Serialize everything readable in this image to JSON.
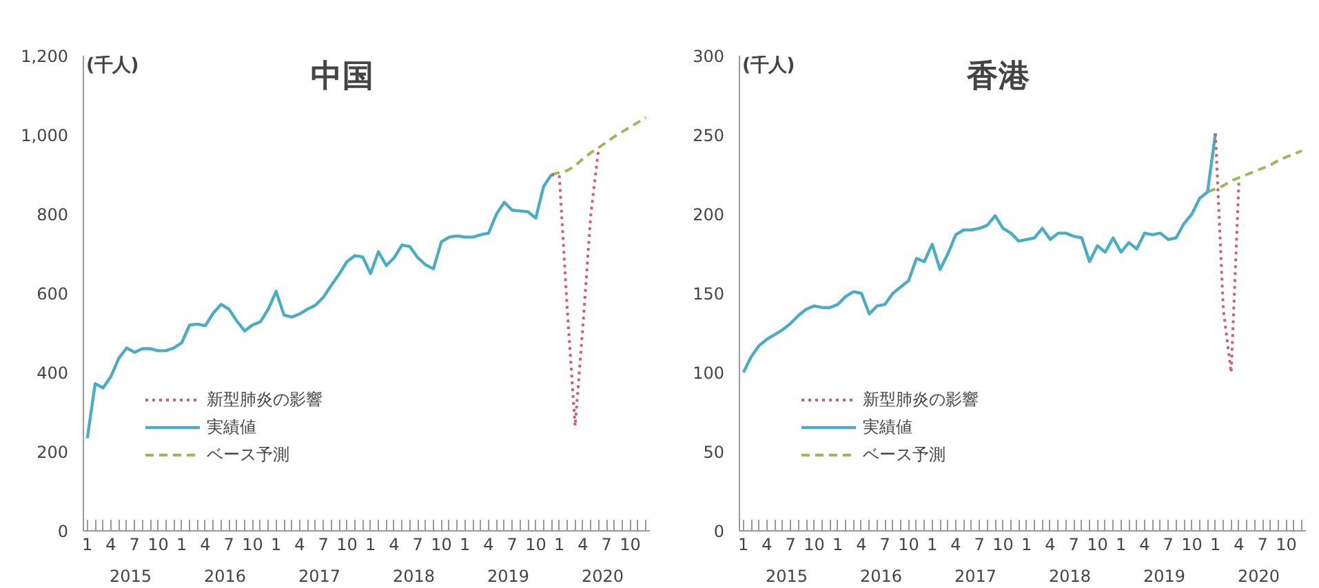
{
  "chart_data": [
    {
      "type": "line",
      "title": "中国",
      "ylabel": "(千人)",
      "categories": [
        "1",
        null,
        null,
        "4",
        null,
        null,
        "7",
        null,
        null,
        "10",
        null,
        null,
        "1",
        null,
        null,
        "4",
        null,
        null,
        "7",
        null,
        null,
        "10",
        null,
        null,
        "1",
        null,
        null,
        "4",
        null,
        null,
        "7",
        null,
        null,
        "10",
        null,
        null,
        "1",
        null,
        null,
        "4",
        null,
        null,
        "7",
        null,
        null,
        "10",
        null,
        null,
        "1",
        null,
        null,
        "4",
        null,
        null,
        "7",
        null,
        null,
        "10",
        null,
        null,
        "1",
        null,
        null,
        "4",
        null,
        null,
        "7",
        null,
        null,
        "10",
        null,
        null
      ],
      "annotations": [
        "2015",
        "2016",
        "2017",
        "2018",
        "2019",
        "2020"
      ],
      "ylim": [
        0,
        1200
      ],
      "yticks": [
        0,
        200,
        400,
        600,
        800,
        {
          "value": 1000,
          "label": "1,000"
        },
        {
          "value": 1200,
          "label": "1,200"
        }
      ],
      "grid": false,
      "legend": "bottom left",
      "series": [
        {
          "name": "新型肺炎の影響",
          "color": "#d0606e",
          "line_style": "dotted",
          "values": [
            null,
            null,
            null,
            null,
            null,
            null,
            null,
            null,
            null,
            null,
            null,
            null,
            null,
            null,
            null,
            null,
            null,
            null,
            null,
            null,
            null,
            null,
            null,
            null,
            null,
            null,
            null,
            null,
            null,
            null,
            null,
            null,
            null,
            null,
            null,
            null,
            null,
            null,
            null,
            null,
            null,
            null,
            null,
            null,
            null,
            null,
            null,
            null,
            null,
            null,
            null,
            null,
            null,
            null,
            null,
            null,
            null,
            null,
            null,
            900,
            895,
            560,
            265,
            520,
            800,
            968,
            null,
            null,
            null,
            null,
            null,
            null
          ]
        },
        {
          "name": "実績値",
          "color": "#4bacc6",
          "line_style": "solid",
          "values": [
            234,
            372,
            361,
            390,
            436,
            462,
            451,
            460,
            460,
            455,
            455,
            462,
            475,
            520,
            522,
            518,
            550,
            572,
            560,
            530,
            505,
            520,
            528,
            560,
            605,
            545,
            540,
            548,
            560,
            570,
            590,
            620,
            648,
            680,
            695,
            692,
            650,
            705,
            670,
            690,
            722,
            718,
            690,
            672,
            662,
            730,
            742,
            745,
            742,
            742,
            748,
            752,
            800,
            830,
            810,
            808,
            806,
            790,
            870,
            900,
            null,
            null,
            null,
            null,
            null,
            null,
            null,
            null,
            null,
            null,
            null,
            null
          ]
        },
        {
          "name": "ベース予測",
          "color": "#9bbb59",
          "line_style": "dashed",
          "values": [
            null,
            null,
            null,
            null,
            null,
            null,
            null,
            null,
            null,
            null,
            null,
            null,
            null,
            null,
            null,
            null,
            null,
            null,
            null,
            null,
            null,
            null,
            null,
            null,
            null,
            null,
            null,
            null,
            null,
            null,
            null,
            null,
            null,
            null,
            null,
            null,
            null,
            null,
            null,
            null,
            null,
            null,
            null,
            null,
            null,
            null,
            null,
            null,
            null,
            null,
            null,
            null,
            null,
            null,
            null,
            null,
            null,
            null,
            null,
            900,
            905,
            910,
            922,
            940,
            955,
            968,
            982,
            996,
            1008,
            1020,
            1032,
            1044
          ]
        }
      ]
    },
    {
      "type": "line",
      "title": "香港",
      "ylabel": "(千人)",
      "categories": [
        "1",
        null,
        null,
        "4",
        null,
        null,
        "7",
        null,
        null,
        "10",
        null,
        null,
        "1",
        null,
        null,
        "4",
        null,
        null,
        "7",
        null,
        null,
        "10",
        null,
        null,
        "1",
        null,
        null,
        "4",
        null,
        null,
        "7",
        null,
        null,
        "10",
        null,
        null,
        "1",
        null,
        null,
        "4",
        null,
        null,
        "7",
        null,
        null,
        "10",
        null,
        null,
        "1",
        null,
        null,
        "4",
        null,
        null,
        "7",
        null,
        null,
        "10",
        null,
        null,
        "1",
        null,
        null,
        "4",
        null,
        null,
        "7",
        null,
        null,
        "10",
        null,
        null
      ],
      "annotations": [
        "2015",
        "2016",
        "2017",
        "2018",
        "2019",
        "2020"
      ],
      "ylim": [
        0,
        300
      ],
      "yticks": [
        0,
        50,
        100,
        150,
        200,
        250,
        300
      ],
      "grid": false,
      "legend": "bottom left",
      "series": [
        {
          "name": "新型肺炎の影響",
          "color": "#d0606e",
          "line_style": "dotted",
          "values": [
            null,
            null,
            null,
            null,
            null,
            null,
            null,
            null,
            null,
            null,
            null,
            null,
            null,
            null,
            null,
            null,
            null,
            null,
            null,
            null,
            null,
            null,
            null,
            null,
            null,
            null,
            null,
            null,
            null,
            null,
            null,
            null,
            null,
            null,
            null,
            null,
            null,
            null,
            null,
            null,
            null,
            null,
            null,
            null,
            null,
            null,
            null,
            null,
            null,
            null,
            null,
            null,
            null,
            null,
            null,
            null,
            null,
            null,
            null,
            null,
            251,
            140,
            100,
            222,
            null,
            null,
            null,
            null,
            null,
            null,
            null,
            null
          ]
        },
        {
          "name": "実績値",
          "color": "#4bacc6",
          "line_style": "solid",
          "values": [
            100,
            110,
            117,
            121,
            124,
            127,
            131,
            136,
            140,
            142,
            141,
            141,
            143,
            148,
            151,
            150,
            137,
            142,
            143,
            150,
            154,
            158,
            172,
            170,
            181,
            165,
            175,
            187,
            190,
            190,
            191,
            193,
            199,
            191,
            188,
            183,
            184,
            185,
            191,
            184,
            188,
            188,
            186,
            185,
            170,
            180,
            176,
            185,
            176,
            182,
            178,
            188,
            187,
            188,
            184,
            185,
            194,
            200,
            210,
            214,
            251,
            null,
            null,
            null,
            null,
            null,
            null,
            null,
            null,
            null,
            null,
            null
          ]
        },
        {
          "name": "ベース予測",
          "color": "#9bbb59",
          "line_style": "dashed",
          "values": [
            null,
            null,
            null,
            null,
            null,
            null,
            null,
            null,
            null,
            null,
            null,
            null,
            null,
            null,
            null,
            null,
            null,
            null,
            null,
            null,
            null,
            null,
            null,
            null,
            null,
            null,
            null,
            null,
            null,
            null,
            null,
            null,
            null,
            null,
            null,
            null,
            null,
            null,
            null,
            null,
            null,
            null,
            null,
            null,
            null,
            null,
            null,
            null,
            null,
            null,
            null,
            null,
            null,
            null,
            null,
            null,
            null,
            null,
            null,
            214,
            216,
            218,
            221,
            223,
            225,
            227,
            229,
            231,
            234,
            236,
            238,
            240
          ]
        }
      ]
    }
  ]
}
